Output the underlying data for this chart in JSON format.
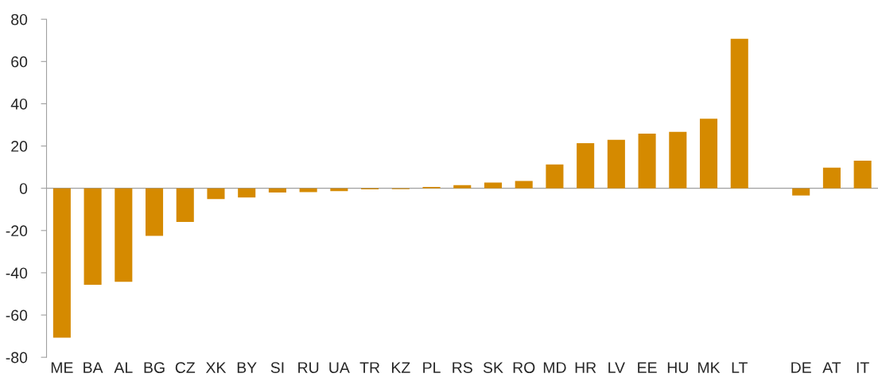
{
  "chart_data": {
    "type": "bar",
    "categories": [
      "ME",
      "BA",
      "AL",
      "BG",
      "CZ",
      "XK",
      "BY",
      "SI",
      "RU",
      "UA",
      "TR",
      "KZ",
      "PL",
      "RS",
      "SK",
      "RO",
      "MD",
      "HR",
      "LV",
      "EE",
      "HU",
      "MK",
      "LT",
      null,
      "DE",
      "AT",
      "IT"
    ],
    "values": [
      -70.7,
      -45.7,
      -44.3,
      -22.5,
      -15.9,
      -5.1,
      -4.4,
      -2.0,
      -1.8,
      -1.3,
      -0.5,
      -0.4,
      0.6,
      1.5,
      2.7,
      3.5,
      11.3,
      21.3,
      22.9,
      25.9,
      26.7,
      32.9,
      70.8,
      null,
      -3.4,
      9.8,
      13.1
    ],
    "color": "#d58a00",
    "ylim": [
      -80,
      80
    ],
    "yticks": [
      -80,
      -60,
      -40,
      -20,
      0,
      20,
      40,
      60,
      80
    ],
    "ref_lines": [
      {
        "axis": "y",
        "value": 0,
        "color": "#a0a0a0"
      }
    ],
    "grid": false,
    "legend": false
  }
}
